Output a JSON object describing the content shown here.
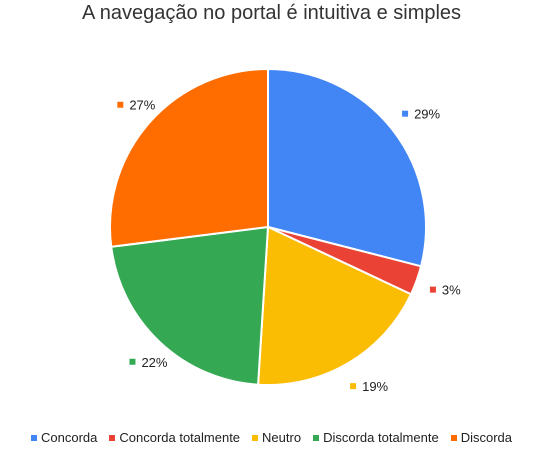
{
  "chart_data": {
    "type": "pie",
    "title": "A navegação no portal é intuitiva e simples",
    "legend_position": "bottom",
    "slices": [
      {
        "name": "Concorda",
        "value": 29,
        "label": "29%",
        "color": "#4285f4"
      },
      {
        "name": "Concorda totalmente",
        "value": 3,
        "label": "3%",
        "color": "#ea4335"
      },
      {
        "name": "Neutro",
        "value": 19,
        "label": "19%",
        "color": "#fbbc04"
      },
      {
        "name": "Discorda totalmente",
        "value": 22,
        "label": "22%",
        "color": "#34a853"
      },
      {
        "name": "Discorda",
        "value": 27,
        "label": "27%",
        "color": "#ff6d01"
      }
    ]
  }
}
